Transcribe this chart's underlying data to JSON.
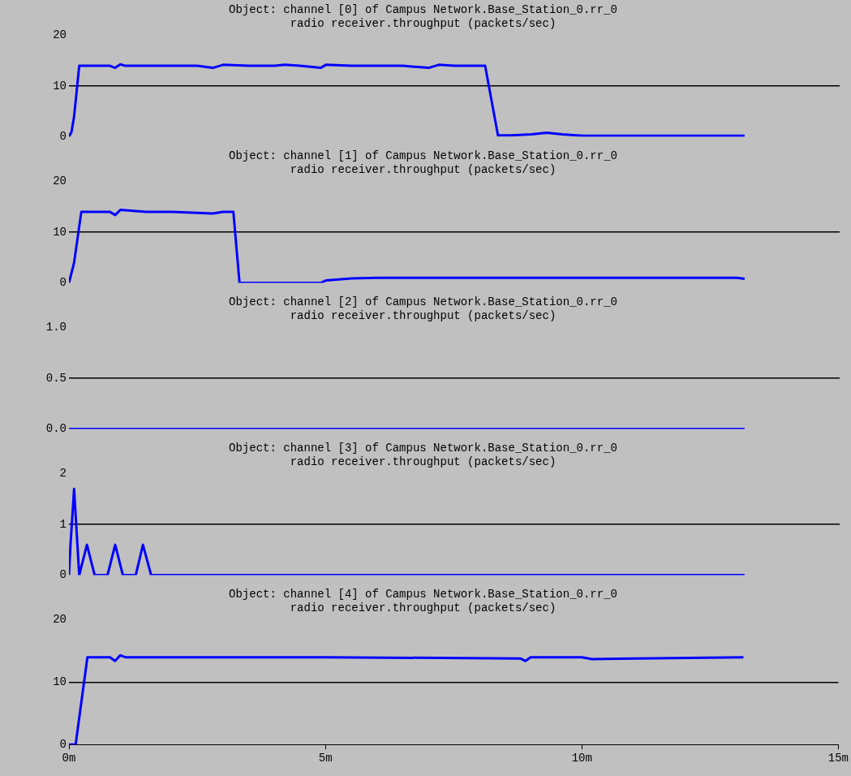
{
  "chart_data": [
    {
      "type": "line",
      "title": "Object: channel [0] of Campus Network.Base_Station_0.rr_0",
      "subtitle": "radio receiver.throughput (packets/sec)",
      "color": "#0000ff",
      "grid": "y",
      "tick_labels": "y",
      "xlim": [
        0,
        15
      ],
      "ylim": [
        0,
        20
      ],
      "yticks": [
        0,
        10,
        20
      ],
      "x": [
        0,
        0.05,
        0.1,
        0.2,
        0.5,
        0.8,
        0.9,
        1.0,
        1.1,
        1.5,
        2.0,
        2.5,
        2.8,
        3.0,
        3.5,
        4.0,
        4.2,
        4.5,
        4.9,
        5.0,
        5.5,
        6.0,
        6.5,
        7.0,
        7.2,
        7.5,
        8.0,
        8.1,
        8.35,
        8.6,
        9.0,
        9.3,
        9.6,
        10.0,
        10.5,
        13.15
      ],
      "values": [
        0,
        1,
        4,
        14,
        14,
        14,
        13.6,
        14.3,
        14,
        14,
        14,
        14,
        13.6,
        14.2,
        14,
        14,
        14.2,
        14,
        13.6,
        14.2,
        14,
        14,
        14,
        13.6,
        14.2,
        14,
        14,
        14,
        0.3,
        0.3,
        0.5,
        0.8,
        0.5,
        0.2,
        0.2,
        0.2
      ]
    },
    {
      "type": "line",
      "title": "Object: channel [1] of Campus Network.Base_Station_0.rr_0",
      "subtitle": "radio receiver.throughput (packets/sec)",
      "color": "#0000ff",
      "grid": "y",
      "tick_labels": "y",
      "xlim": [
        0,
        15
      ],
      "ylim": [
        0,
        20
      ],
      "yticks": [
        0,
        10,
        20
      ],
      "x": [
        0,
        0.1,
        0.24,
        0.5,
        0.8,
        0.9,
        1.0,
        1.5,
        2.0,
        2.8,
        3.0,
        3.2,
        3.32,
        4.0,
        4.9,
        5.0,
        5.5,
        6,
        6.5,
        7,
        7.5,
        8,
        8.5,
        9,
        9.5,
        10,
        10.5,
        11,
        11.5,
        12,
        12.5,
        13,
        13.15
      ],
      "values": [
        0,
        4,
        14,
        14,
        14,
        13.4,
        14.4,
        14,
        14,
        13.7,
        14,
        14,
        0,
        0,
        0,
        0.5,
        0.9,
        1,
        1,
        1,
        1,
        1,
        1,
        1,
        1,
        1,
        1,
        1,
        1,
        1,
        1,
        1,
        0.8
      ]
    },
    {
      "type": "line",
      "title": "Object: channel [2] of Campus Network.Base_Station_0.rr_0",
      "subtitle": "radio receiver.throughput (packets/sec)",
      "color": "#0000ff",
      "grid": "y",
      "tick_labels": "y",
      "xlim": [
        0,
        15
      ],
      "ylim": [
        0,
        1
      ],
      "yticks": [
        {
          "value": 0,
          "label": "0.0"
        },
        {
          "value": 0.5,
          "label": "0.5"
        },
        {
          "value": 1,
          "label": "1.0"
        }
      ],
      "x": [
        0,
        13.15
      ],
      "values": [
        0,
        0
      ]
    },
    {
      "type": "line",
      "title": "Object: channel [3] of Campus Network.Base_Station_0.rr_0",
      "subtitle": "radio receiver.throughput (packets/sec)",
      "color": "#0000ff",
      "grid": "y",
      "tick_labels": "y",
      "xlim": [
        0,
        15
      ],
      "ylim": [
        0,
        2
      ],
      "yticks": [
        0,
        1,
        2
      ],
      "x": [
        0,
        0.03,
        0.1,
        0.2,
        0.35,
        0.5,
        0.75,
        0.9,
        1.05,
        1.3,
        1.44,
        1.6,
        13.15
      ],
      "values": [
        0,
        0.6,
        1.7,
        0,
        0.6,
        0,
        0,
        0.6,
        0,
        0,
        0.6,
        0,
        0
      ]
    },
    {
      "type": "line",
      "title": "Object: channel [4] of Campus Network.Base_Station_0.rr_0",
      "subtitle": "radio receiver.throughput (packets/sec)",
      "color": "#0000ff",
      "grid": "y",
      "xlim": [
        0,
        15
      ],
      "xticks": [
        {
          "value": 0,
          "label": "0m"
        },
        {
          "value": 5,
          "label": "5m"
        },
        {
          "value": 10,
          "label": "10m"
        },
        {
          "value": 15,
          "label": "15m"
        }
      ],
      "ylim": [
        0,
        20
      ],
      "yticks": [
        0,
        10,
        20
      ],
      "x": [
        0,
        0.13,
        0.36,
        0.7,
        0.8,
        0.9,
        1.0,
        1.1,
        2.0,
        3,
        5,
        8.8,
        8.9,
        9,
        10,
        10.2,
        13.15
      ],
      "values": [
        0,
        0,
        14,
        14,
        14,
        13.4,
        14.3,
        14,
        14,
        14,
        14,
        13.8,
        13.4,
        14,
        14,
        13.7,
        14
      ]
    }
  ]
}
